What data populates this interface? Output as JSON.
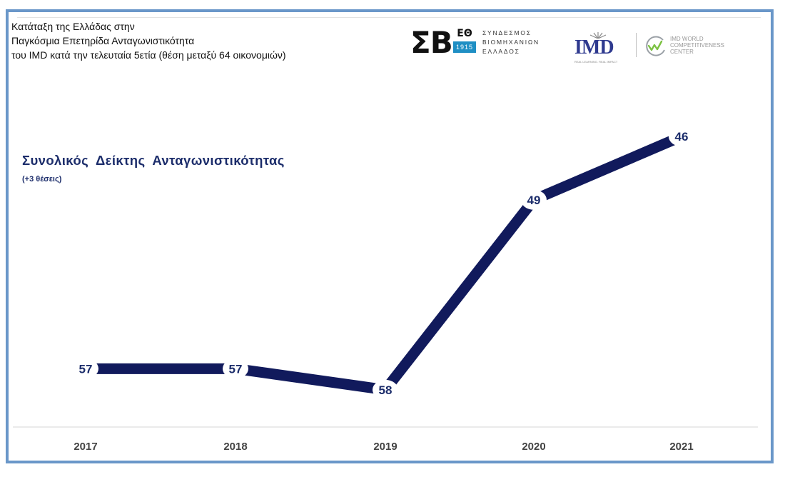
{
  "header": {
    "lines": [
      "Κατάταξη της Ελλάδας στην",
      "Παγκόσμια Επετηρίδα Ανταγωνιστικότητα",
      "του IMD κατά την τελευταία 5ετία (θέση μεταξύ 64 οικονομιών)"
    ]
  },
  "logos": {
    "sev": {
      "letters": "ΣΒ",
      "eo": "ΕΘ",
      "year": "1915",
      "name_lines": [
        "ΣΥΝΔΕΣΜΟΣ",
        "ΒΙΟΜΗΧΑΝΙΩΝ",
        "ΕΛΛΑΔΟΣ"
      ]
    },
    "imd": {
      "word": "IMD",
      "sub": "REAL LEARNING. REAL IMPACT"
    },
    "wcc": {
      "name_lines": [
        "IMD WORLD",
        "COMPETITIVENESS",
        "CENTER"
      ],
      "accent": "#7cc242"
    }
  },
  "chart_data": {
    "type": "line",
    "title": "Συνολικός  Δείκτης  Ανταγωνιστικότητας",
    "subtitle": "(+3 θέσεις)",
    "categories": [
      "2017",
      "2018",
      "2019",
      "2020",
      "2021"
    ],
    "series": [
      {
        "values": [
          57,
          57,
          58,
          49,
          46
        ]
      }
    ],
    "data_labels": [
      "57",
      "57",
      "58",
      "49",
      "46"
    ],
    "ylim": [
      60,
      44
    ],
    "y_inverted": true,
    "grid": false,
    "legend": "none",
    "line_color": "#111a5c",
    "label_color": "#1c2d6b"
  }
}
